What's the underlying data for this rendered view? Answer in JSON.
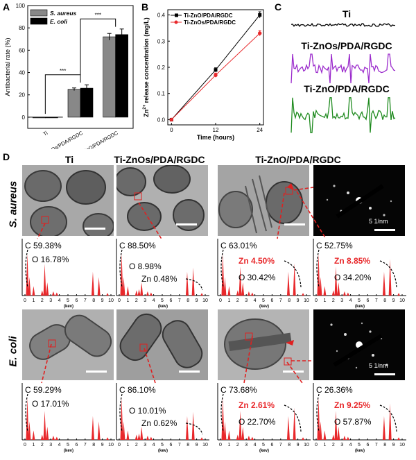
{
  "panel_letters": {
    "a": "A",
    "b": "B",
    "c": "C",
    "d": "D"
  },
  "chart_data": [
    {
      "panel": "A",
      "type": "bar",
      "ylabel": "Antibacterial rate (%)",
      "ylim": [
        -10,
        100
      ],
      "yticks": [
        0,
        20,
        40,
        60,
        80,
        100
      ],
      "categories": [
        "Ti",
        "Ti-ZnOs/PDA/RGDC",
        "Ti-ZnO/PDA/RGDC"
      ],
      "series": [
        {
          "name": "S. aureus",
          "color": "#888888",
          "values": [
            0,
            25,
            72
          ],
          "errors": [
            0,
            1.2,
            3
          ]
        },
        {
          "name": "E. coli",
          "color": "#000000",
          "values": [
            0,
            26,
            74
          ],
          "errors": [
            0,
            3,
            5
          ]
        }
      ],
      "significance": [
        "***",
        "***"
      ],
      "legend": "top-left"
    },
    {
      "panel": "B",
      "type": "line",
      "xlabel": "Time (hours)",
      "ylabel_main": "Zn",
      "ylabel_sup": "2+",
      "ylabel_rest": " release concentration (mg/L)",
      "x": [
        0,
        12,
        24
      ],
      "xlim": [
        -1,
        25
      ],
      "ylim": [
        -0.02,
        0.42
      ],
      "yticks": [
        0.0,
        0.1,
        0.2,
        0.3,
        0.4
      ],
      "ytick_labels": [
        "0.0",
        "0.1",
        "0.2",
        "0.3",
        "0.4"
      ],
      "xticks": [
        0,
        12,
        24
      ],
      "series": [
        {
          "name": "Ti-ZnO/PDA/RGDC",
          "color": "#000000",
          "marker": "square",
          "values": [
            0.0,
            0.19,
            0.4
          ],
          "errors": [
            0,
            0.008,
            0.012
          ]
        },
        {
          "name": "Ti-ZnOs/PDA/RGDC",
          "color": "#e8282b",
          "marker": "circle",
          "values": [
            0.0,
            0.17,
            0.33
          ],
          "errors": [
            0,
            0.008,
            0.01
          ]
        }
      ],
      "legend": "top-left"
    }
  ],
  "panel_c": {
    "traces": [
      {
        "label": "Ti",
        "color": "#000000"
      },
      {
        "label": "Ti-ZnOs/PDA/RGDC",
        "color": "#9b2bcc"
      },
      {
        "label": "Ti-ZnO/PDA/RGDC",
        "color": "#1e8a1e"
      }
    ]
  },
  "panel_d": {
    "column_titles": [
      "Ti",
      "Ti-ZnOs/PDA/RGDC",
      "Ti-ZnO/PDA/RGDC"
    ],
    "row_labels": [
      "S. aureus",
      "E. coli"
    ],
    "scale_label": "5 1/nm",
    "spectra_axis": {
      "ticks": [
        "0",
        "1",
        "2",
        "3",
        "4",
        "5",
        "6",
        "7",
        "8",
        "9",
        "10"
      ],
      "unit": "(kev)"
    },
    "spectra": [
      [
        {
          "c": "C 59.38%",
          "o": "O 16.78%",
          "zn": ""
        },
        {
          "c": "C 88.50%",
          "o": "O 8.98%",
          "zn": "Zn 0.48%"
        },
        {
          "c": "C 63.01%",
          "o": "O 30.42%",
          "zn": "Zn 4.50%"
        },
        {
          "c": "C 52.75%",
          "o": "O 34.20%",
          "zn": "Zn 8.85%"
        }
      ],
      [
        {
          "c": "C 59.29%",
          "o": "O 17.01%",
          "zn": ""
        },
        {
          "c": "C 86.10%",
          "o": "O 10.01%",
          "zn": "Zn 0.62%"
        },
        {
          "c": "C 73.68%",
          "o": "O 22.70%",
          "zn": "Zn 2.61%"
        },
        {
          "c": "C 26.36%",
          "o": "O 57.87%",
          "zn": "Zn 9.25%"
        }
      ]
    ],
    "zn_color": "#e8282b",
    "spectrum_color": "#e8282b"
  }
}
